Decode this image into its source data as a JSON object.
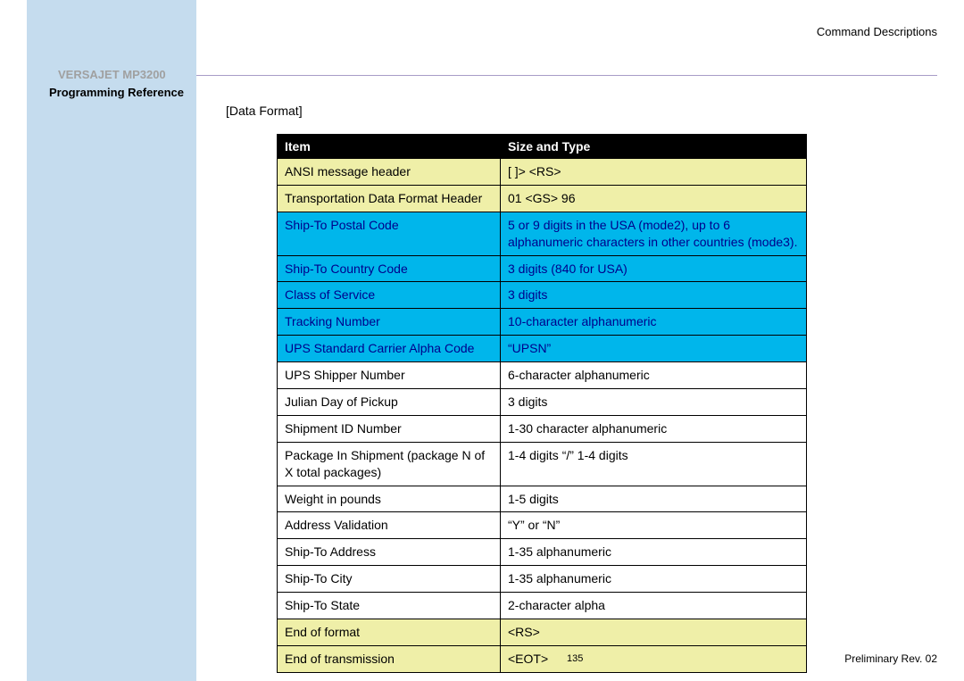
{
  "header_right": "Command  Descriptions",
  "product_title": "VERSAJET MP3200",
  "subtitle": "Programming Reference",
  "section_label": "[Data Format]",
  "colors": {
    "sidebar": "#c5dcee",
    "divider": "#a89cc8",
    "header_bg": "#000000",
    "header_fg": "#ffffff",
    "yellow_bg": "#efefa8",
    "yellow_fg": "#000000",
    "cyan_bg": "#00b6eb",
    "cyan_fg": "#00008b",
    "white_bg": "#ffffff",
    "white_fg": "#000000"
  },
  "table": {
    "headers": [
      "Item",
      "Size and Type"
    ],
    "col_widths": [
      "250px",
      "auto"
    ],
    "rows": [
      {
        "item": "ANSI message header",
        "size": "[ ]> <RS>",
        "style": "yellow"
      },
      {
        "item": "Transportation Data Format Header",
        "size": "01 <GS> 96",
        "style": "yellow"
      },
      {
        "item": "Ship-To Postal Code",
        "size": "5 or 9 digits in the USA (mode2), up to 6 alphanumeric characters in other countries (mode3).",
        "style": "cyan"
      },
      {
        "item": "Ship-To Country Code",
        "size": "3 digits (840 for USA)",
        "style": "cyan"
      },
      {
        "item": "Class of Service",
        "size": "3 digits",
        "style": "cyan"
      },
      {
        "item": "Tracking Number",
        "size": "10-character alphanumeric",
        "style": "cyan"
      },
      {
        "item": "UPS Standard Carrier Alpha Code",
        "size": "“UPSN”",
        "style": "cyan"
      },
      {
        "item": "UPS Shipper Number",
        "size": "6-character alphanumeric",
        "style": "white"
      },
      {
        "item": "Julian Day of Pickup",
        "size": "3 digits",
        "style": "white"
      },
      {
        "item": "Shipment ID Number",
        "size": "1-30 character alphanumeric",
        "style": "white"
      },
      {
        "item": "Package In Shipment (package N of X total packages)",
        "size": "1-4 digits “/” 1-4 digits",
        "style": "white"
      },
      {
        "item": "Weight in pounds",
        "size": "1-5 digits",
        "style": "white"
      },
      {
        "item": "Address Validation",
        "size": "“Y” or “N”",
        "style": "white"
      },
      {
        "item": "Ship-To Address",
        "size": "1-35 alphanumeric",
        "style": "white"
      },
      {
        "item": "Ship-To City",
        "size": "1-35 alphanumeric",
        "style": "white"
      },
      {
        "item": "Ship-To State",
        "size": "2-character alpha",
        "style": "white"
      },
      {
        "item": "End of format",
        "size": "<RS>",
        "style": "yellow"
      },
      {
        "item": "End of transmission",
        "size": "<EOT>",
        "style": "yellow"
      }
    ]
  },
  "page_num": "135",
  "footer_right": "Preliminary Rev. 02"
}
